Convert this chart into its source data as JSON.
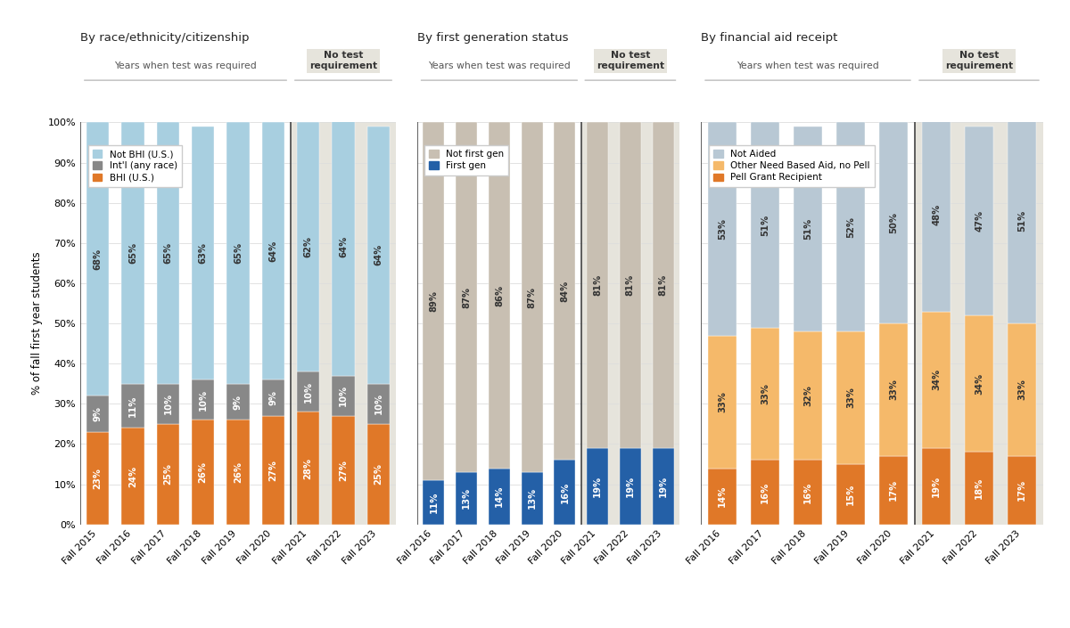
{
  "chart1": {
    "title": "By race/ethnicity/citizenship",
    "years_required": [
      "Fall 2015",
      "Fall 2016",
      "Fall 2017",
      "Fall 2018",
      "Fall 2019",
      "Fall 2020"
    ],
    "years_no_test": [
      "Fall 2021",
      "Fall 2022",
      "Fall 2023"
    ],
    "bhi": [
      23,
      24,
      25,
      26,
      26,
      27,
      28,
      27,
      25
    ],
    "intl": [
      9,
      11,
      10,
      10,
      9,
      9,
      10,
      10,
      10
    ],
    "not_bhi": [
      68,
      65,
      65,
      63,
      65,
      64,
      62,
      64,
      64
    ],
    "colors": [
      "#e07828",
      "#888888",
      "#a8cfe0"
    ],
    "legend": [
      "Not BHI (U.S.)",
      "Int'l (any race)",
      "BHI (U.S.)"
    ]
  },
  "chart2": {
    "title": "By first generation status",
    "years_required": [
      "Fall 2016",
      "Fall 2017",
      "Fall 2018",
      "Fall 2019",
      "Fall 2020"
    ],
    "years_no_test": [
      "Fall 2021",
      "Fall 2022",
      "Fall 2023"
    ],
    "first_gen": [
      11,
      13,
      14,
      13,
      16,
      19,
      19,
      19
    ],
    "not_first_gen": [
      89,
      87,
      86,
      87,
      84,
      81,
      81,
      81
    ],
    "colors": [
      "#2460a7",
      "#c8bfb2"
    ],
    "legend": [
      "Not first gen",
      "First gen"
    ]
  },
  "chart3": {
    "title": "By financial aid receipt",
    "years_required": [
      "Fall 2016",
      "Fall 2017",
      "Fall 2018",
      "Fall 2019",
      "Fall 2020"
    ],
    "years_no_test": [
      "Fall 2021",
      "Fall 2022",
      "Fall 2023"
    ],
    "pell": [
      14,
      16,
      16,
      15,
      17,
      19,
      18,
      17
    ],
    "other_need": [
      33,
      33,
      32,
      33,
      33,
      34,
      34,
      33
    ],
    "not_aided": [
      53,
      51,
      51,
      52,
      50,
      48,
      47,
      51
    ],
    "colors": [
      "#e07828",
      "#f5b96a",
      "#b8c8d4"
    ],
    "legend": [
      "Not Aided",
      "Other Need Based Aid, no Pell",
      "Pell Grant Recipient"
    ]
  },
  "ylabel": "% of fall first year students",
  "header_required": "Years when test was required",
  "header_no_test": "No test\nrequirement",
  "no_test_bg": "#e6e4dc",
  "separator_color": "#444444",
  "bar_width": 0.65,
  "ytick_labels": [
    "0%",
    "10%",
    "20%",
    "30%",
    "40%",
    "50%",
    "60%",
    "70%",
    "80%",
    "90%",
    "100%"
  ],
  "ytick_vals": [
    0,
    10,
    20,
    30,
    40,
    50,
    60,
    70,
    80,
    90,
    100
  ]
}
